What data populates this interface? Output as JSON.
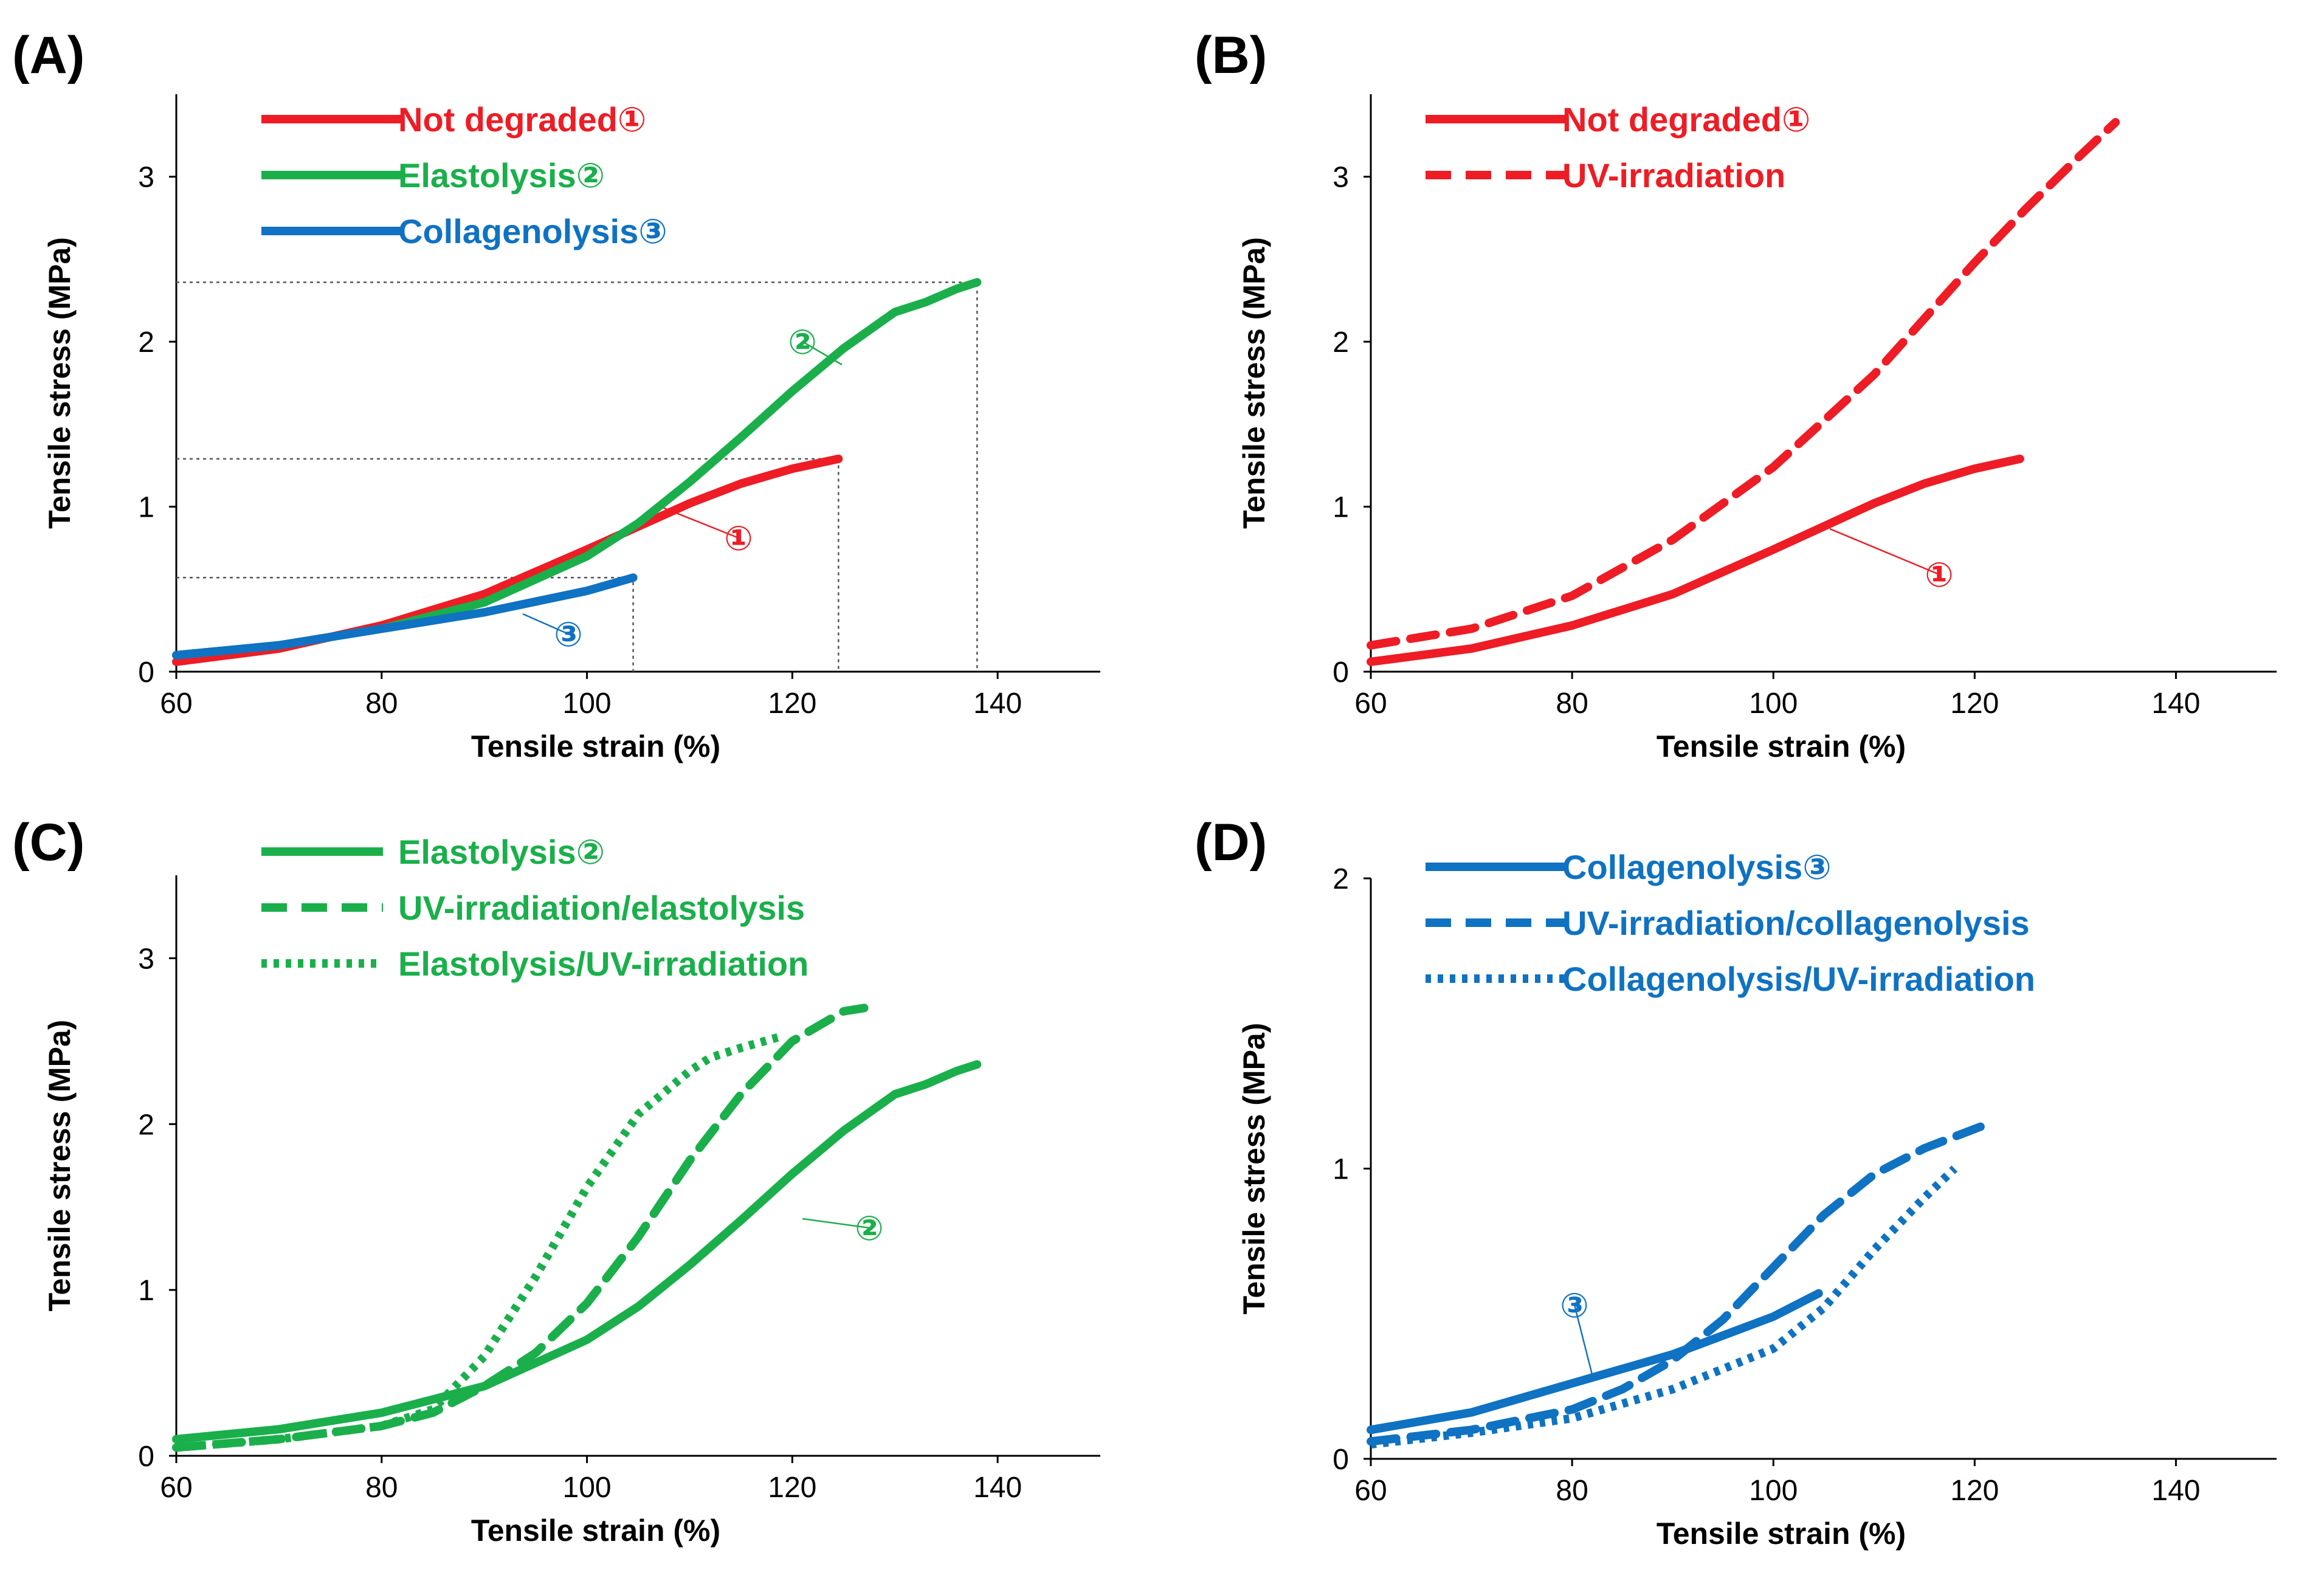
{
  "chart_data": [
    {
      "type": "line",
      "panel": "(A)",
      "xlabel": "Tensile strain (%)",
      "ylabel": "Tensile stress (MPa)",
      "xlim": [
        60,
        150
      ],
      "ylim": [
        0,
        3.5
      ],
      "xticks": [
        60,
        80,
        100,
        120,
        140
      ],
      "yticks": [
        0,
        1,
        2,
        3
      ],
      "series": [
        {
          "name": "Not degraded①",
          "color": "#ee1c25",
          "style": "solid",
          "marker": "①",
          "x": [
            60,
            70,
            80,
            90,
            100,
            105,
            110,
            115,
            120,
            124.5
          ],
          "y": [
            0.06,
            0.14,
            0.28,
            0.47,
            0.74,
            0.88,
            1.02,
            1.14,
            1.23,
            1.29
          ]
        },
        {
          "name": "Elastolysis②",
          "color": "#1aaf4b",
          "style": "solid",
          "marker": "②",
          "x": [
            60,
            70,
            80,
            90,
            100,
            105,
            110,
            115,
            120,
            125,
            130,
            133,
            136,
            138
          ],
          "y": [
            0.1,
            0.16,
            0.26,
            0.42,
            0.7,
            0.9,
            1.15,
            1.42,
            1.7,
            1.96,
            2.18,
            2.24,
            2.32,
            2.36
          ]
        },
        {
          "name": "Collagenolysis③",
          "color": "#0f72c2",
          "style": "solid",
          "marker": "③",
          "x": [
            60,
            70,
            80,
            90,
            100,
            104.5
          ],
          "y": [
            0.1,
            0.16,
            0.26,
            0.36,
            0.49,
            0.57
          ]
        }
      ],
      "reference_lines": [
        {
          "x": 104.5,
          "y": 0.57
        },
        {
          "x": 124.5,
          "y": 1.29
        },
        {
          "x": 138,
          "y": 2.36
        }
      ]
    },
    {
      "type": "line",
      "panel": "(B)",
      "xlabel": "Tensile strain (%)",
      "ylabel": "Tensile stress (MPa)",
      "xlim": [
        60,
        150
      ],
      "ylim": [
        0,
        3.5
      ],
      "xticks": [
        60,
        80,
        100,
        120,
        140
      ],
      "yticks": [
        0,
        1,
        2,
        3
      ],
      "series": [
        {
          "name": "Not degraded①",
          "color": "#ee1c25",
          "style": "solid",
          "marker": "①",
          "x": [
            60,
            70,
            80,
            90,
            100,
            105,
            110,
            115,
            120,
            124.5
          ],
          "y": [
            0.06,
            0.14,
            0.28,
            0.47,
            0.74,
            0.88,
            1.02,
            1.14,
            1.23,
            1.29
          ]
        },
        {
          "name": "UV-irradiation",
          "color": "#ee1c25",
          "style": "dashed",
          "x": [
            60,
            70,
            80,
            90,
            100,
            110,
            120,
            125,
            130,
            134
          ],
          "y": [
            0.16,
            0.26,
            0.46,
            0.8,
            1.24,
            1.8,
            2.48,
            2.8,
            3.1,
            3.33
          ]
        }
      ]
    },
    {
      "type": "line",
      "panel": "(C)",
      "xlabel": "Tensile strain (%)",
      "ylabel": "Tensile stress (MPa)",
      "xlim": [
        60,
        150
      ],
      "ylim": [
        0,
        3.5
      ],
      "xticks": [
        60,
        80,
        100,
        120,
        140
      ],
      "yticks": [
        0,
        1,
        2,
        3
      ],
      "series": [
        {
          "name": "Elastolysis②",
          "color": "#1aaf4b",
          "style": "solid",
          "marker": "②",
          "x": [
            60,
            70,
            80,
            90,
            100,
            105,
            110,
            115,
            120,
            125,
            130,
            133,
            136,
            138
          ],
          "y": [
            0.1,
            0.16,
            0.26,
            0.42,
            0.7,
            0.9,
            1.15,
            1.42,
            1.7,
            1.96,
            2.18,
            2.24,
            2.32,
            2.36
          ]
        },
        {
          "name": "UV-irradiation/elastolysis",
          "color": "#1aaf4b",
          "style": "dashed",
          "x": [
            60,
            70,
            80,
            85,
            90,
            95,
            100,
            105,
            110,
            115,
            120,
            125,
            127
          ],
          "y": [
            0.05,
            0.1,
            0.18,
            0.26,
            0.42,
            0.62,
            0.92,
            1.32,
            1.78,
            2.18,
            2.5,
            2.68,
            2.7
          ]
        },
        {
          "name": "Elastolysis/UV-irradiation",
          "color": "#1aaf4b",
          "style": "dotted",
          "x": [
            60,
            70,
            80,
            85,
            90,
            95,
            100,
            105,
            110,
            112,
            115,
            119
          ],
          "y": [
            0.05,
            0.1,
            0.18,
            0.28,
            0.6,
            1.08,
            1.62,
            2.06,
            2.32,
            2.4,
            2.46,
            2.53
          ]
        }
      ]
    },
    {
      "type": "line",
      "panel": "(D)",
      "xlabel": "Tensile strain (%)",
      "ylabel": "Tensile stress (MPa)",
      "xlim": [
        60,
        150
      ],
      "ylim": [
        0,
        2
      ],
      "xticks": [
        60,
        80,
        100,
        120,
        140
      ],
      "yticks": [
        0,
        1,
        2
      ],
      "series": [
        {
          "name": "Collagenolysis③",
          "color": "#0f72c2",
          "style": "solid",
          "marker": "③",
          "x": [
            60,
            70,
            80,
            90,
            100,
            104.5
          ],
          "y": [
            0.1,
            0.16,
            0.26,
            0.36,
            0.49,
            0.57
          ]
        },
        {
          "name": "UV-irradiation/collagenolysis",
          "color": "#0f72c2",
          "style": "dashed",
          "x": [
            60,
            70,
            80,
            85,
            90,
            95,
            100,
            105,
            110,
            115,
            121
          ],
          "y": [
            0.06,
            0.1,
            0.17,
            0.24,
            0.34,
            0.48,
            0.66,
            0.84,
            0.98,
            1.07,
            1.15
          ]
        },
        {
          "name": "Collagenolysis/UV-irradiation",
          "color": "#0f72c2",
          "style": "dotted",
          "x": [
            60,
            70,
            80,
            90,
            100,
            105,
            110,
            115,
            118
          ],
          "y": [
            0.05,
            0.09,
            0.14,
            0.24,
            0.38,
            0.52,
            0.72,
            0.9,
            1.0
          ]
        }
      ]
    }
  ]
}
